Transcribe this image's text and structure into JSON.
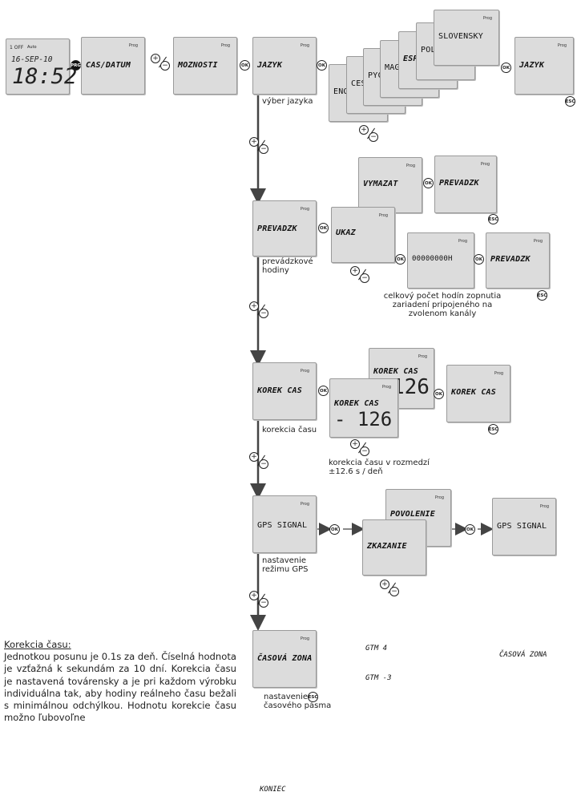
{
  "start_display": {
    "top_left": "1 OFF",
    "auto": "Auto",
    "date": "16-SEP-10",
    "time": "18:52",
    "prg": "PRG"
  },
  "prog_label": "Prog",
  "row1": {
    "cas_datum": "CAS/DATUM",
    "moznosti": "MOZNOSTI",
    "jazyk": "JAZYK",
    "jazyk_caption": "výber jazyka",
    "lang_stack": [
      "ENG",
      "CES",
      "PYC",
      "MAG",
      "ESP",
      "POL",
      "SLOVENSKY"
    ],
    "jazyk_end": "JAZYK"
  },
  "buttons": {
    "ok": "OK",
    "esc": "ESC",
    "plus": "+",
    "minus": "−"
  },
  "prevadzk": {
    "title": "PREVADZK",
    "caption": "prevádzkové hodiny",
    "vymazat": "VYMAZAT",
    "ukaz": "UKAZ",
    "prevadzk_after_vymazat": "PREVADZK",
    "counter": "00000000H",
    "prevadzk_after_counter": "PREVADZK",
    "counter_caption": "celkový počet hodín zopnutia zariadení pripojeného na zvolenom kanály"
  },
  "korek": {
    "title": "KOREK CAS",
    "caption": "korekcia času",
    "back_title": "KOREK CAS",
    "back_value": "126",
    "front_title": "KOREK CAS",
    "front_value": "- 126",
    "end_title": "KOREK CAS",
    "range_caption": "korekcia času v rozmedzí ±12.6 s / deň"
  },
  "gps": {
    "title": "GPS SIGNAL",
    "caption": "nastavenie režimu GPS",
    "povolenie": "POVOLENIE",
    "zakazanie": "ZKAZANIE",
    "end_title": "GPS SIGNAL"
  },
  "zona": {
    "title": "ČASOVÁ ZONA",
    "caption": "nastavenie časového pásma",
    "gtm_plus": "GTM 4",
    "gtm_minus": "GTM -3",
    "end_title": "ČASOVÁ ZONA"
  },
  "koniec": "KONIEC",
  "note": {
    "heading": "Korekcia času:",
    "body": "Jednotkou posunu je 0.1s za deň. Číselná hodnota je vzťažná k sekundám za 10 dní. Korekcia času je nastavená továrensky a je pri každom výrobku individuálna tak, aby hodiny reálneho času bežali s minimálnou odchýlkou. Hodnotu korekcie času možno ľubovoľne"
  }
}
